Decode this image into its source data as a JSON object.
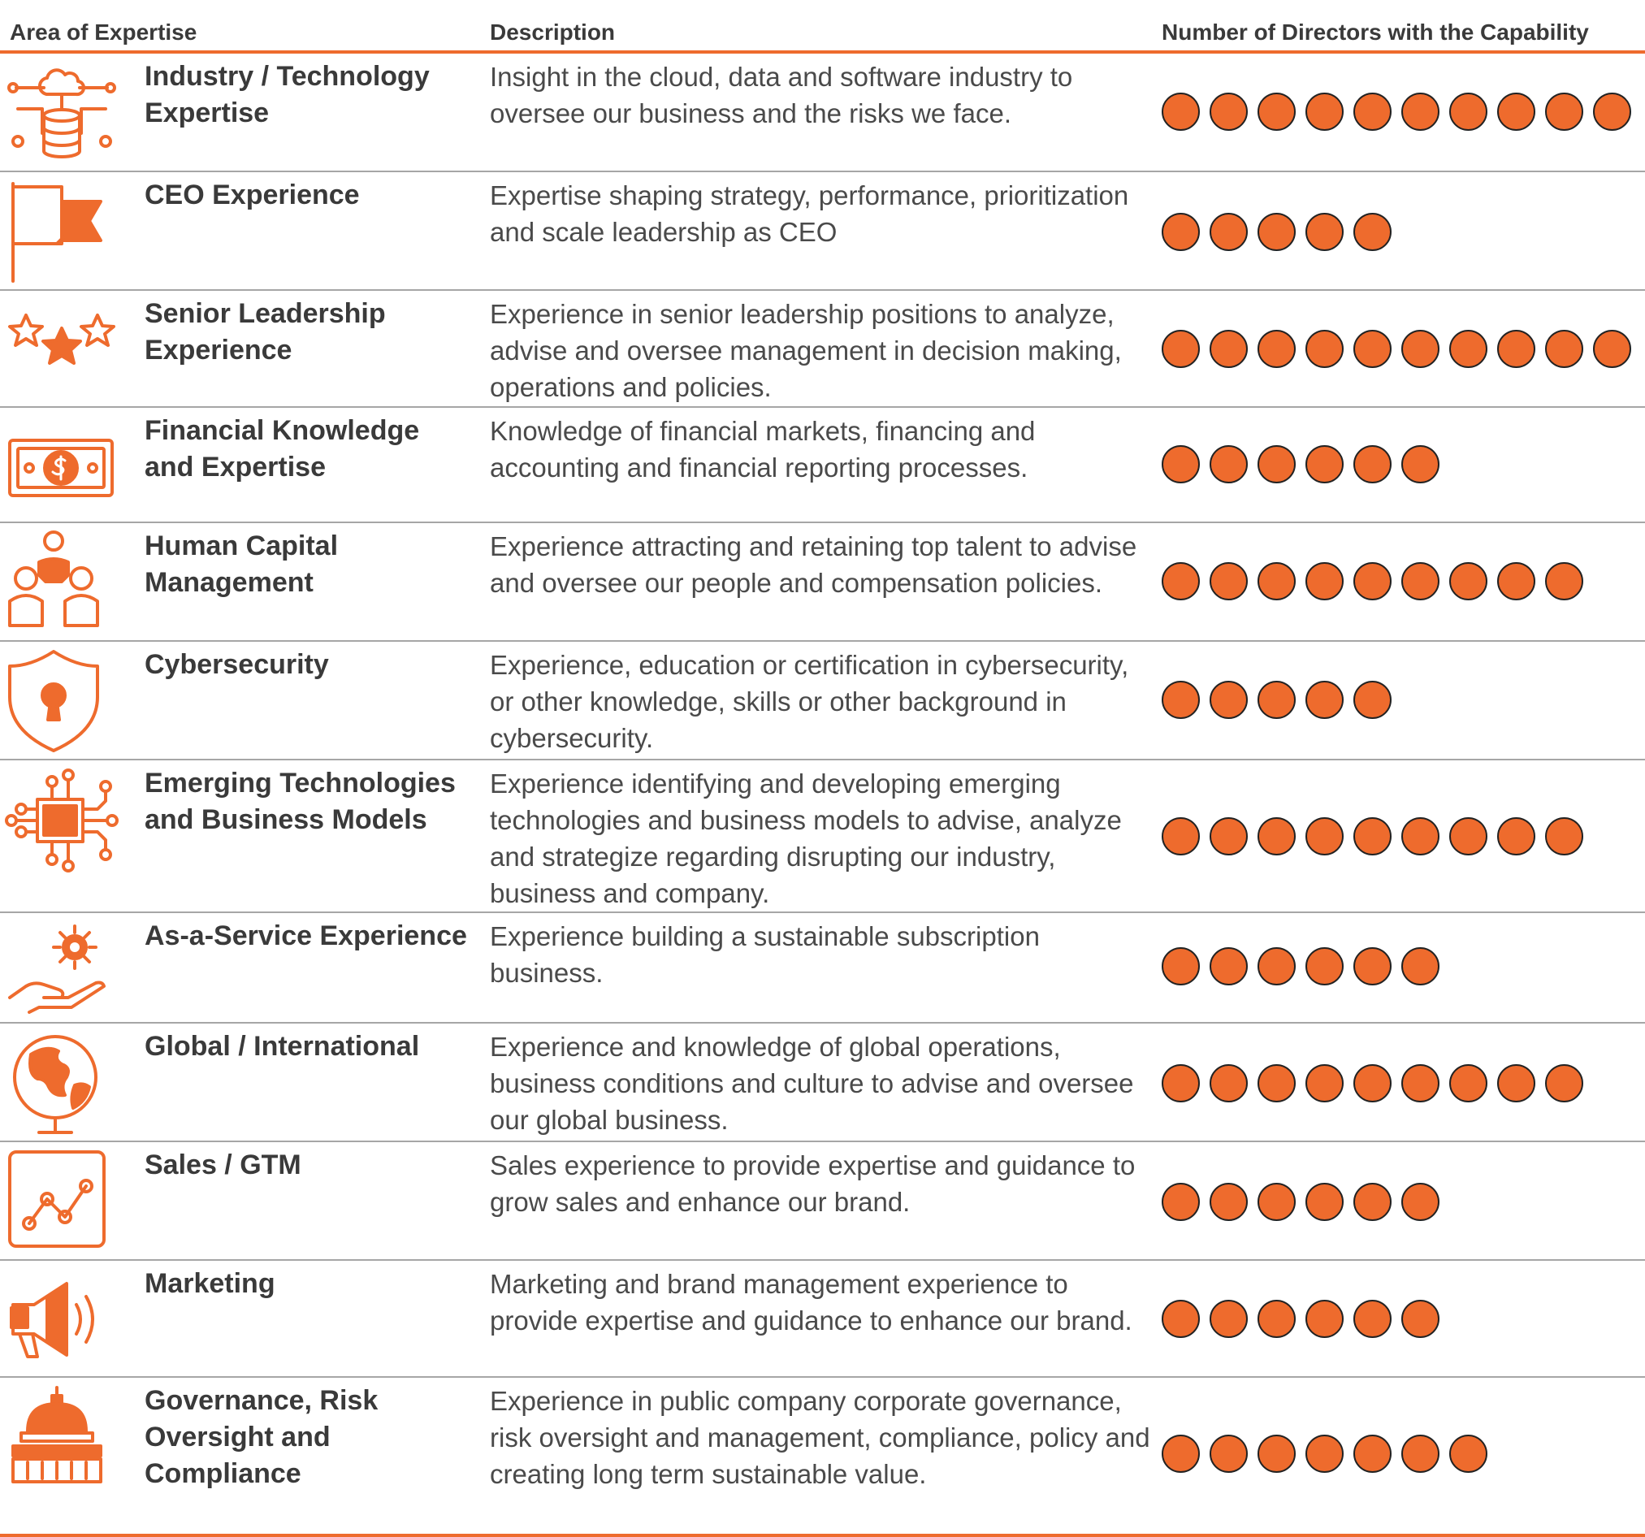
{
  "headers": {
    "area": "Area of Expertise",
    "description": "Description",
    "directors": "Number of Directors with the Capability"
  },
  "accent_color": "#ee6b2d",
  "rows": [
    {
      "icon": "cloud-database-icon",
      "area": "Industry / Technology Expertise",
      "description": "Insight in the cloud, data and software industry to oversee our business and the risks we face.",
      "directors": 10
    },
    {
      "icon": "flag-icon",
      "area": "CEO Experience",
      "description": "Expertise shaping strategy, performance, prioritization and scale leadership as CEO",
      "directors": 5
    },
    {
      "icon": "stars-icon",
      "area": "Senior Leadership Experience",
      "description": "Experience in senior leadership positions to analyze, advise and oversee management in decision making, operations and policies.",
      "directors": 10
    },
    {
      "icon": "banknote-icon",
      "area": "Financial Knowledge and Expertise",
      "description": "Knowledge of financial markets, financing and accounting and financial reporting processes.",
      "directors": 6
    },
    {
      "icon": "people-group-icon",
      "area": "Human Capital Management",
      "description": "Experience attracting and retaining top talent to advise and oversee our people and compensation policies.",
      "directors": 9
    },
    {
      "icon": "shield-lock-icon",
      "area": "Cybersecurity",
      "description": "Experience, education or certification in cybersecurity, or other knowledge, skills or other background in cybersecurity.",
      "directors": 5
    },
    {
      "icon": "circuit-chip-icon",
      "area": "Emerging Technologies and Business Models",
      "description": "Experience identifying and developing emerging technologies and business models to advise, analyze and strategize regarding disrupting our industry, business and company.",
      "directors": 9
    },
    {
      "icon": "hand-gear-icon",
      "area": "As-a-Service Experience",
      "description": "Experience building a sustainable subscription business.",
      "directors": 6
    },
    {
      "icon": "globe-icon",
      "area": "Global / International",
      "description": "Experience and knowledge of global operations, business conditions and culture to advise and oversee our global business.",
      "directors": 9
    },
    {
      "icon": "line-chart-icon",
      "area": "Sales / GTM",
      "description": "Sales experience to provide expertise and guidance to grow sales and enhance our brand.",
      "directors": 6
    },
    {
      "icon": "megaphone-icon",
      "area": "Marketing",
      "description": "Marketing and brand management experience to provide expertise and guidance to enhance our brand.",
      "directors": 6
    },
    {
      "icon": "capitol-building-icon",
      "area": "Governance, Risk Oversight and Compliance",
      "description": "Experience in public company corporate governance, risk oversight and management, compliance, policy and creating long term sustainable value.",
      "directors": 7
    }
  ]
}
